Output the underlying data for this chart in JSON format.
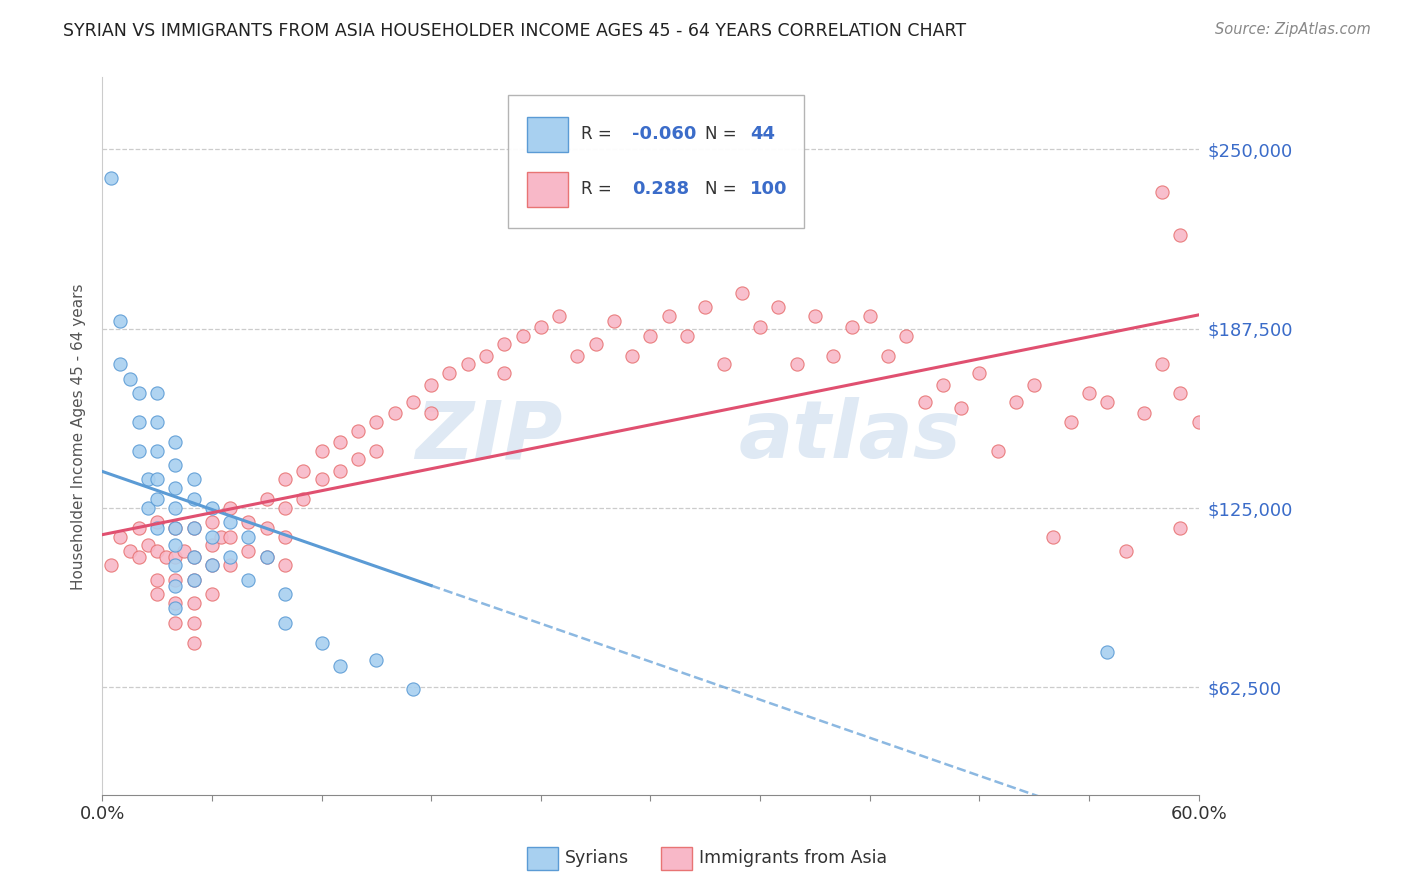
{
  "title": "SYRIAN VS IMMIGRANTS FROM ASIA HOUSEHOLDER INCOME AGES 45 - 64 YEARS CORRELATION CHART",
  "source_text": "Source: ZipAtlas.com",
  "ylabel": "Householder Income Ages 45 - 64 years",
  "watermark": "ZipAtlas",
  "xmin": 0.0,
  "xmax": 0.6,
  "ymin": 25000,
  "ymax": 275000,
  "ytick_values": [
    62500,
    125000,
    187500,
    250000
  ],
  "ytick_labels": [
    "$62,500",
    "$125,000",
    "$187,500",
    "$250,000"
  ],
  "xtick_values": [
    0.0,
    0.06,
    0.12,
    0.18,
    0.24,
    0.3,
    0.36,
    0.42,
    0.48,
    0.54,
    0.6
  ],
  "legend_r1": "-0.060",
  "legend_n1": "44",
  "legend_r2": "0.288",
  "legend_n2": "100",
  "syrian_fill": "#a8d0f0",
  "syrian_edge": "#5b9bd5",
  "asia_fill": "#f8b8c8",
  "asia_edge": "#e87474",
  "trend_blue": "#5b9bd5",
  "trend_pink": "#e05070",
  "bg": "#ffffff",
  "grid_color": "#cccccc",
  "syrians_x": [
    0.005,
    0.01,
    0.01,
    0.015,
    0.02,
    0.02,
    0.02,
    0.025,
    0.025,
    0.03,
    0.03,
    0.03,
    0.03,
    0.03,
    0.03,
    0.04,
    0.04,
    0.04,
    0.04,
    0.04,
    0.04,
    0.04,
    0.04,
    0.04,
    0.05,
    0.05,
    0.05,
    0.05,
    0.05,
    0.06,
    0.06,
    0.06,
    0.07,
    0.07,
    0.08,
    0.08,
    0.09,
    0.1,
    0.1,
    0.12,
    0.13,
    0.15,
    0.17,
    0.55
  ],
  "syrians_y": [
    240000,
    190000,
    175000,
    170000,
    165000,
    155000,
    145000,
    135000,
    125000,
    165000,
    155000,
    145000,
    135000,
    128000,
    118000,
    148000,
    140000,
    132000,
    125000,
    118000,
    112000,
    105000,
    98000,
    90000,
    135000,
    128000,
    118000,
    108000,
    100000,
    125000,
    115000,
    105000,
    120000,
    108000,
    115000,
    100000,
    108000,
    95000,
    85000,
    78000,
    70000,
    72000,
    62000,
    75000
  ],
  "asia_x": [
    0.005,
    0.01,
    0.015,
    0.02,
    0.02,
    0.025,
    0.03,
    0.03,
    0.03,
    0.03,
    0.035,
    0.04,
    0.04,
    0.04,
    0.04,
    0.04,
    0.045,
    0.05,
    0.05,
    0.05,
    0.05,
    0.05,
    0.05,
    0.06,
    0.06,
    0.06,
    0.06,
    0.065,
    0.07,
    0.07,
    0.07,
    0.08,
    0.08,
    0.09,
    0.09,
    0.09,
    0.1,
    0.1,
    0.1,
    0.1,
    0.11,
    0.11,
    0.12,
    0.12,
    0.13,
    0.13,
    0.14,
    0.14,
    0.15,
    0.15,
    0.16,
    0.17,
    0.18,
    0.18,
    0.19,
    0.2,
    0.21,
    0.22,
    0.22,
    0.23,
    0.24,
    0.25,
    0.26,
    0.27,
    0.28,
    0.29,
    0.3,
    0.31,
    0.32,
    0.33,
    0.34,
    0.35,
    0.36,
    0.37,
    0.38,
    0.39,
    0.4,
    0.41,
    0.42,
    0.43,
    0.44,
    0.45,
    0.46,
    0.47,
    0.48,
    0.49,
    0.5,
    0.51,
    0.52,
    0.53,
    0.54,
    0.55,
    0.56,
    0.57,
    0.58,
    0.58,
    0.59,
    0.59,
    0.59,
    0.6
  ],
  "asia_y": [
    105000,
    115000,
    110000,
    118000,
    108000,
    112000,
    120000,
    110000,
    100000,
    95000,
    108000,
    118000,
    108000,
    100000,
    92000,
    85000,
    110000,
    118000,
    108000,
    100000,
    92000,
    85000,
    78000,
    120000,
    112000,
    105000,
    95000,
    115000,
    125000,
    115000,
    105000,
    120000,
    110000,
    128000,
    118000,
    108000,
    135000,
    125000,
    115000,
    105000,
    138000,
    128000,
    145000,
    135000,
    148000,
    138000,
    152000,
    142000,
    155000,
    145000,
    158000,
    162000,
    168000,
    158000,
    172000,
    175000,
    178000,
    182000,
    172000,
    185000,
    188000,
    192000,
    178000,
    182000,
    190000,
    178000,
    185000,
    192000,
    185000,
    195000,
    175000,
    200000,
    188000,
    195000,
    175000,
    192000,
    178000,
    188000,
    192000,
    178000,
    185000,
    162000,
    168000,
    160000,
    172000,
    145000,
    162000,
    168000,
    115000,
    155000,
    165000,
    162000,
    110000,
    158000,
    235000,
    175000,
    220000,
    165000,
    118000,
    155000
  ]
}
